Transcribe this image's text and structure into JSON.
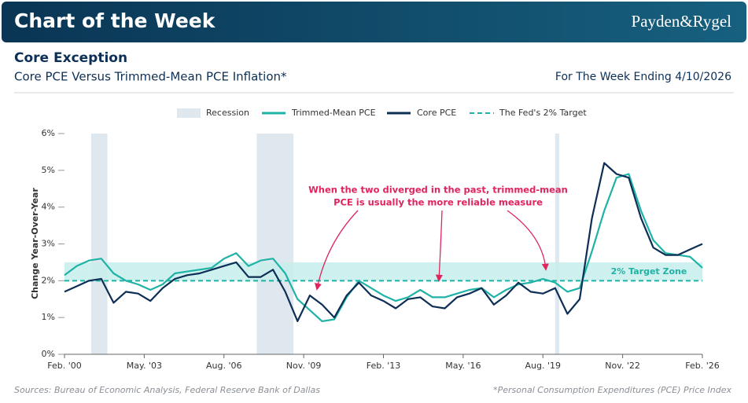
{
  "header": {
    "banner": "Chart of the Week",
    "logo": "Payden&Rygel",
    "week": "For The Week Ending 4/10/2026"
  },
  "footer": {
    "sources": "Sources: Bureau of Economic Analysis, Federal Reserve Bank of Dallas",
    "note": "*Personal Consumption Expenditures (PCE) Price Index"
  },
  "chart_data": {
    "type": "line",
    "title": "Core Exception",
    "subtitle": "Core PCE Versus Trimmed-Mean PCE Inflation*",
    "y_label": "Change Year-Over-Year",
    "x": [
      "2000-02",
      "2000-08",
      "2001-02",
      "2001-08",
      "2002-02",
      "2002-08",
      "2003-02",
      "2003-08",
      "2004-02",
      "2004-08",
      "2005-02",
      "2005-08",
      "2006-02",
      "2006-08",
      "2007-02",
      "2007-08",
      "2008-02",
      "2008-08",
      "2009-02",
      "2009-08",
      "2010-02",
      "2010-08",
      "2011-02",
      "2011-08",
      "2012-02",
      "2012-08",
      "2013-02",
      "2013-08",
      "2014-02",
      "2014-08",
      "2015-02",
      "2015-08",
      "2016-02",
      "2016-08",
      "2017-02",
      "2017-08",
      "2018-02",
      "2018-08",
      "2019-02",
      "2019-08",
      "2020-02",
      "2020-08",
      "2021-02",
      "2021-08",
      "2022-02",
      "2022-08",
      "2023-02",
      "2023-08",
      "2024-02",
      "2024-08",
      "2025-02",
      "2025-08",
      "2026-02"
    ],
    "series": [
      {
        "name": "Trimmed-Mean PCE",
        "color": "#1fb3a6",
        "values": [
          2.15,
          2.4,
          2.55,
          2.6,
          2.2,
          2.0,
          1.9,
          1.75,
          1.9,
          2.2,
          2.25,
          2.3,
          2.35,
          2.6,
          2.75,
          2.4,
          2.55,
          2.6,
          2.2,
          1.5,
          1.2,
          0.9,
          0.95,
          1.55,
          2.0,
          1.8,
          1.6,
          1.45,
          1.55,
          1.75,
          1.55,
          1.55,
          1.65,
          1.75,
          1.8,
          1.55,
          1.75,
          1.9,
          1.95,
          2.05,
          1.95,
          1.7,
          1.8,
          2.8,
          3.9,
          4.8,
          4.9,
          3.9,
          3.1,
          2.75,
          2.7,
          2.65,
          2.35
        ]
      },
      {
        "name": "Core PCE",
        "color": "#0d2f55",
        "values": [
          1.7,
          1.85,
          2.0,
          2.05,
          1.4,
          1.7,
          1.65,
          1.45,
          1.8,
          2.05,
          2.15,
          2.2,
          2.3,
          2.4,
          2.5,
          2.1,
          2.1,
          2.3,
          1.7,
          0.9,
          1.6,
          1.35,
          1.0,
          1.6,
          1.95,
          1.6,
          1.45,
          1.25,
          1.5,
          1.55,
          1.3,
          1.25,
          1.55,
          1.65,
          1.8,
          1.35,
          1.6,
          1.95,
          1.7,
          1.65,
          1.8,
          1.1,
          1.5,
          3.7,
          5.2,
          4.9,
          4.8,
          3.7,
          2.9,
          2.7,
          2.7,
          2.85,
          3.0
        ]
      }
    ],
    "recessions": {
      "name": "Recession",
      "color": "#dfe8ef",
      "periods": [
        [
          "2001-03",
          "2001-11"
        ],
        [
          "2007-12",
          "2009-06"
        ],
        [
          "2020-02",
          "2020-04"
        ]
      ]
    },
    "target": {
      "name": "The Fed's 2% Target",
      "value": 2,
      "color": "#1fb3a6"
    },
    "target_zone": {
      "label": "2% Target Zone",
      "range": [
        2,
        2.5
      ],
      "color": "#c9eeec"
    },
    "annotation": {
      "lines": [
        "When the two diverged in the past, trimmed-mean",
        "PCE is usually the more reliable measure"
      ],
      "color": "#e0245e"
    },
    "xlim": [
      "2000-02",
      "2026-02"
    ],
    "xticks": [
      {
        "value": "2000-02",
        "label": "Feb. '00"
      },
      {
        "value": "2003-05",
        "label": "May. '03"
      },
      {
        "value": "2006-08",
        "label": "Aug. '06"
      },
      {
        "value": "2009-11",
        "label": "Nov. '09"
      },
      {
        "value": "2013-02",
        "label": "Feb. '13"
      },
      {
        "value": "2016-05",
        "label": "May. '16"
      },
      {
        "value": "2019-08",
        "label": "Aug. '19"
      },
      {
        "value": "2022-11",
        "label": "Nov. '22"
      },
      {
        "value": "2026-02",
        "label": "Feb. '26"
      }
    ],
    "ylim": [
      0,
      6
    ],
    "yticks": [
      {
        "value": 0,
        "label": "0%"
      },
      {
        "value": 1,
        "label": "1%"
      },
      {
        "value": 2,
        "label": "2%"
      },
      {
        "value": 3,
        "label": "3%"
      },
      {
        "value": 4,
        "label": "4%"
      },
      {
        "value": 5,
        "label": "5%"
      },
      {
        "value": 6,
        "label": "6%"
      }
    ]
  }
}
